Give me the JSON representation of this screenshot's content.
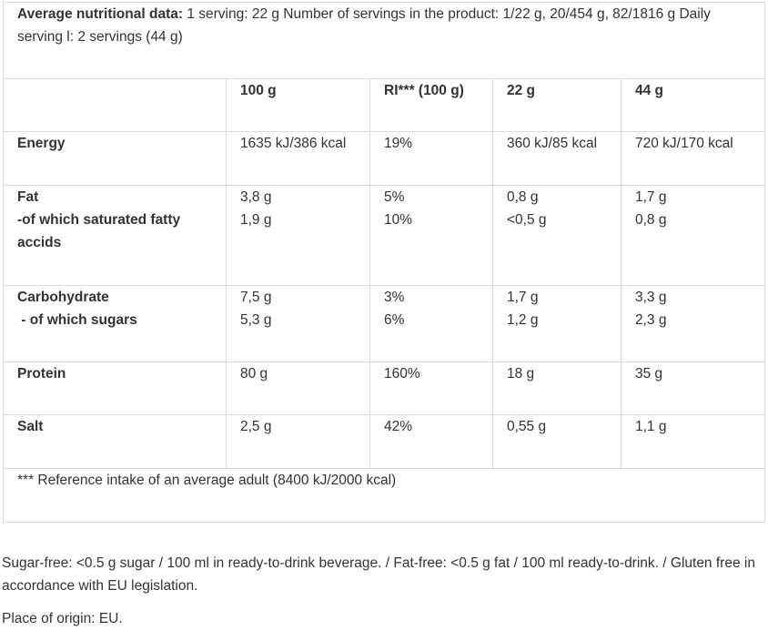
{
  "intro": {
    "label": "Average nutritional data:",
    "text": " 1 serving: 22 g Number of servings in the product: 1/22 g, 20/454 g, 82/1816 g Daily serving l: 2 servings (44 g)"
  },
  "columns": [
    "",
    "100 g",
    "RI*** (100 g)",
    "22 g",
    "44 g"
  ],
  "rows": [
    {
      "name": [
        "Energy"
      ],
      "c1": [
        "1635 kJ/386 kcal"
      ],
      "c2": [
        "19%"
      ],
      "c3": [
        "360 kJ/85 kcal"
      ],
      "c4": [
        "720 kJ/170 kcal"
      ]
    },
    {
      "name": [
        "Fat",
        "-of which saturated fatty accids"
      ],
      "c1": [
        "3,8 g",
        "1,9 g"
      ],
      "c2": [
        "5%",
        "10%"
      ],
      "c3": [
        "0,8 g",
        "<0,5 g"
      ],
      "c4": [
        "1,7 g",
        "0,8 g"
      ]
    },
    {
      "name": [
        "Carbohydrate",
        " - of which sugars"
      ],
      "c1": [
        "7,5 g",
        "5,3 g"
      ],
      "c2": [
        "3%",
        "6%"
      ],
      "c3": [
        "1,7 g",
        "1,2 g"
      ],
      "c4": [
        "3,3 g",
        "2,3 g"
      ]
    },
    {
      "name": [
        "Protein"
      ],
      "c1": [
        "80 g"
      ],
      "c2": [
        "160%"
      ],
      "c3": [
        "18 g"
      ],
      "c4": [
        "35 g"
      ]
    },
    {
      "name": [
        "Salt"
      ],
      "c1": [
        "2,5 g"
      ],
      "c2": [
        "42%"
      ],
      "c3": [
        "0,55 g"
      ],
      "c4": [
        "1,1 g"
      ]
    }
  ],
  "footnote": "*** Reference intake of an average adult (8400 kJ/2000 kcal)",
  "notes": {
    "disclaimer": "Sugar-free: <0.5 g sugar / 100 ml in ready-to-drink beverage. / Fat-free: <0.5 g fat / 100 ml ready-to-drink. / Gluten free in accordance with EU legislation.",
    "origin": "Place of origin: EU."
  }
}
